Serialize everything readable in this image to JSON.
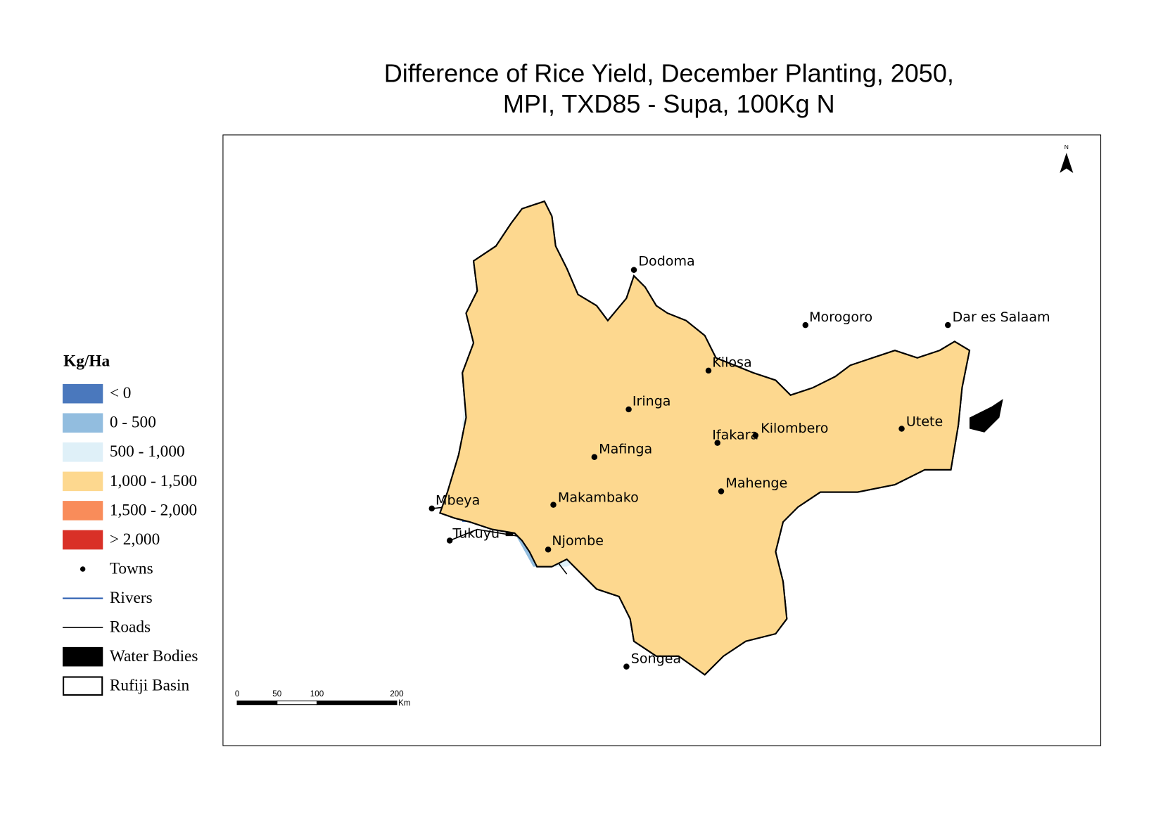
{
  "header": {
    "title_lines": [
      "Difference of Rice Yield, December Planting, 2050,",
      "MPI, TXD85 - Supa, 100Kg N"
    ]
  },
  "legend": {
    "title": "Kg/Ha",
    "classes": [
      {
        "label": "< 0",
        "color": "#4a78bd"
      },
      {
        "label": "0 - 500",
        "color": "#92bddf"
      },
      {
        "label": "500 - 1,000",
        "color": "#dff0f8"
      },
      {
        "label": "1,000 - 1,500",
        "color": "#fdd88f"
      },
      {
        "label": "1,500 - 2,000",
        "color": "#f98c5a"
      },
      {
        "label": "> 2,000",
        "color": "#d93027"
      }
    ],
    "features": [
      "Towns",
      "Rivers",
      "Roads",
      "Water Bodies",
      "Rufiji Basin"
    ]
  },
  "towns": [
    "Dodoma",
    "Morogoro",
    "Dar es Salaam",
    "Kilosa",
    "Iringa",
    "Mafinga",
    "Ifakara",
    "Kilombero",
    "Utete",
    "Mahenge",
    "Makambako",
    "Mbeya",
    "Tukuyu",
    "Njombe",
    "Songea"
  ],
  "north_arrow": "N",
  "scale_bar": {
    "ticks": [
      0,
      50,
      100,
      200
    ],
    "unit": "Km"
  }
}
